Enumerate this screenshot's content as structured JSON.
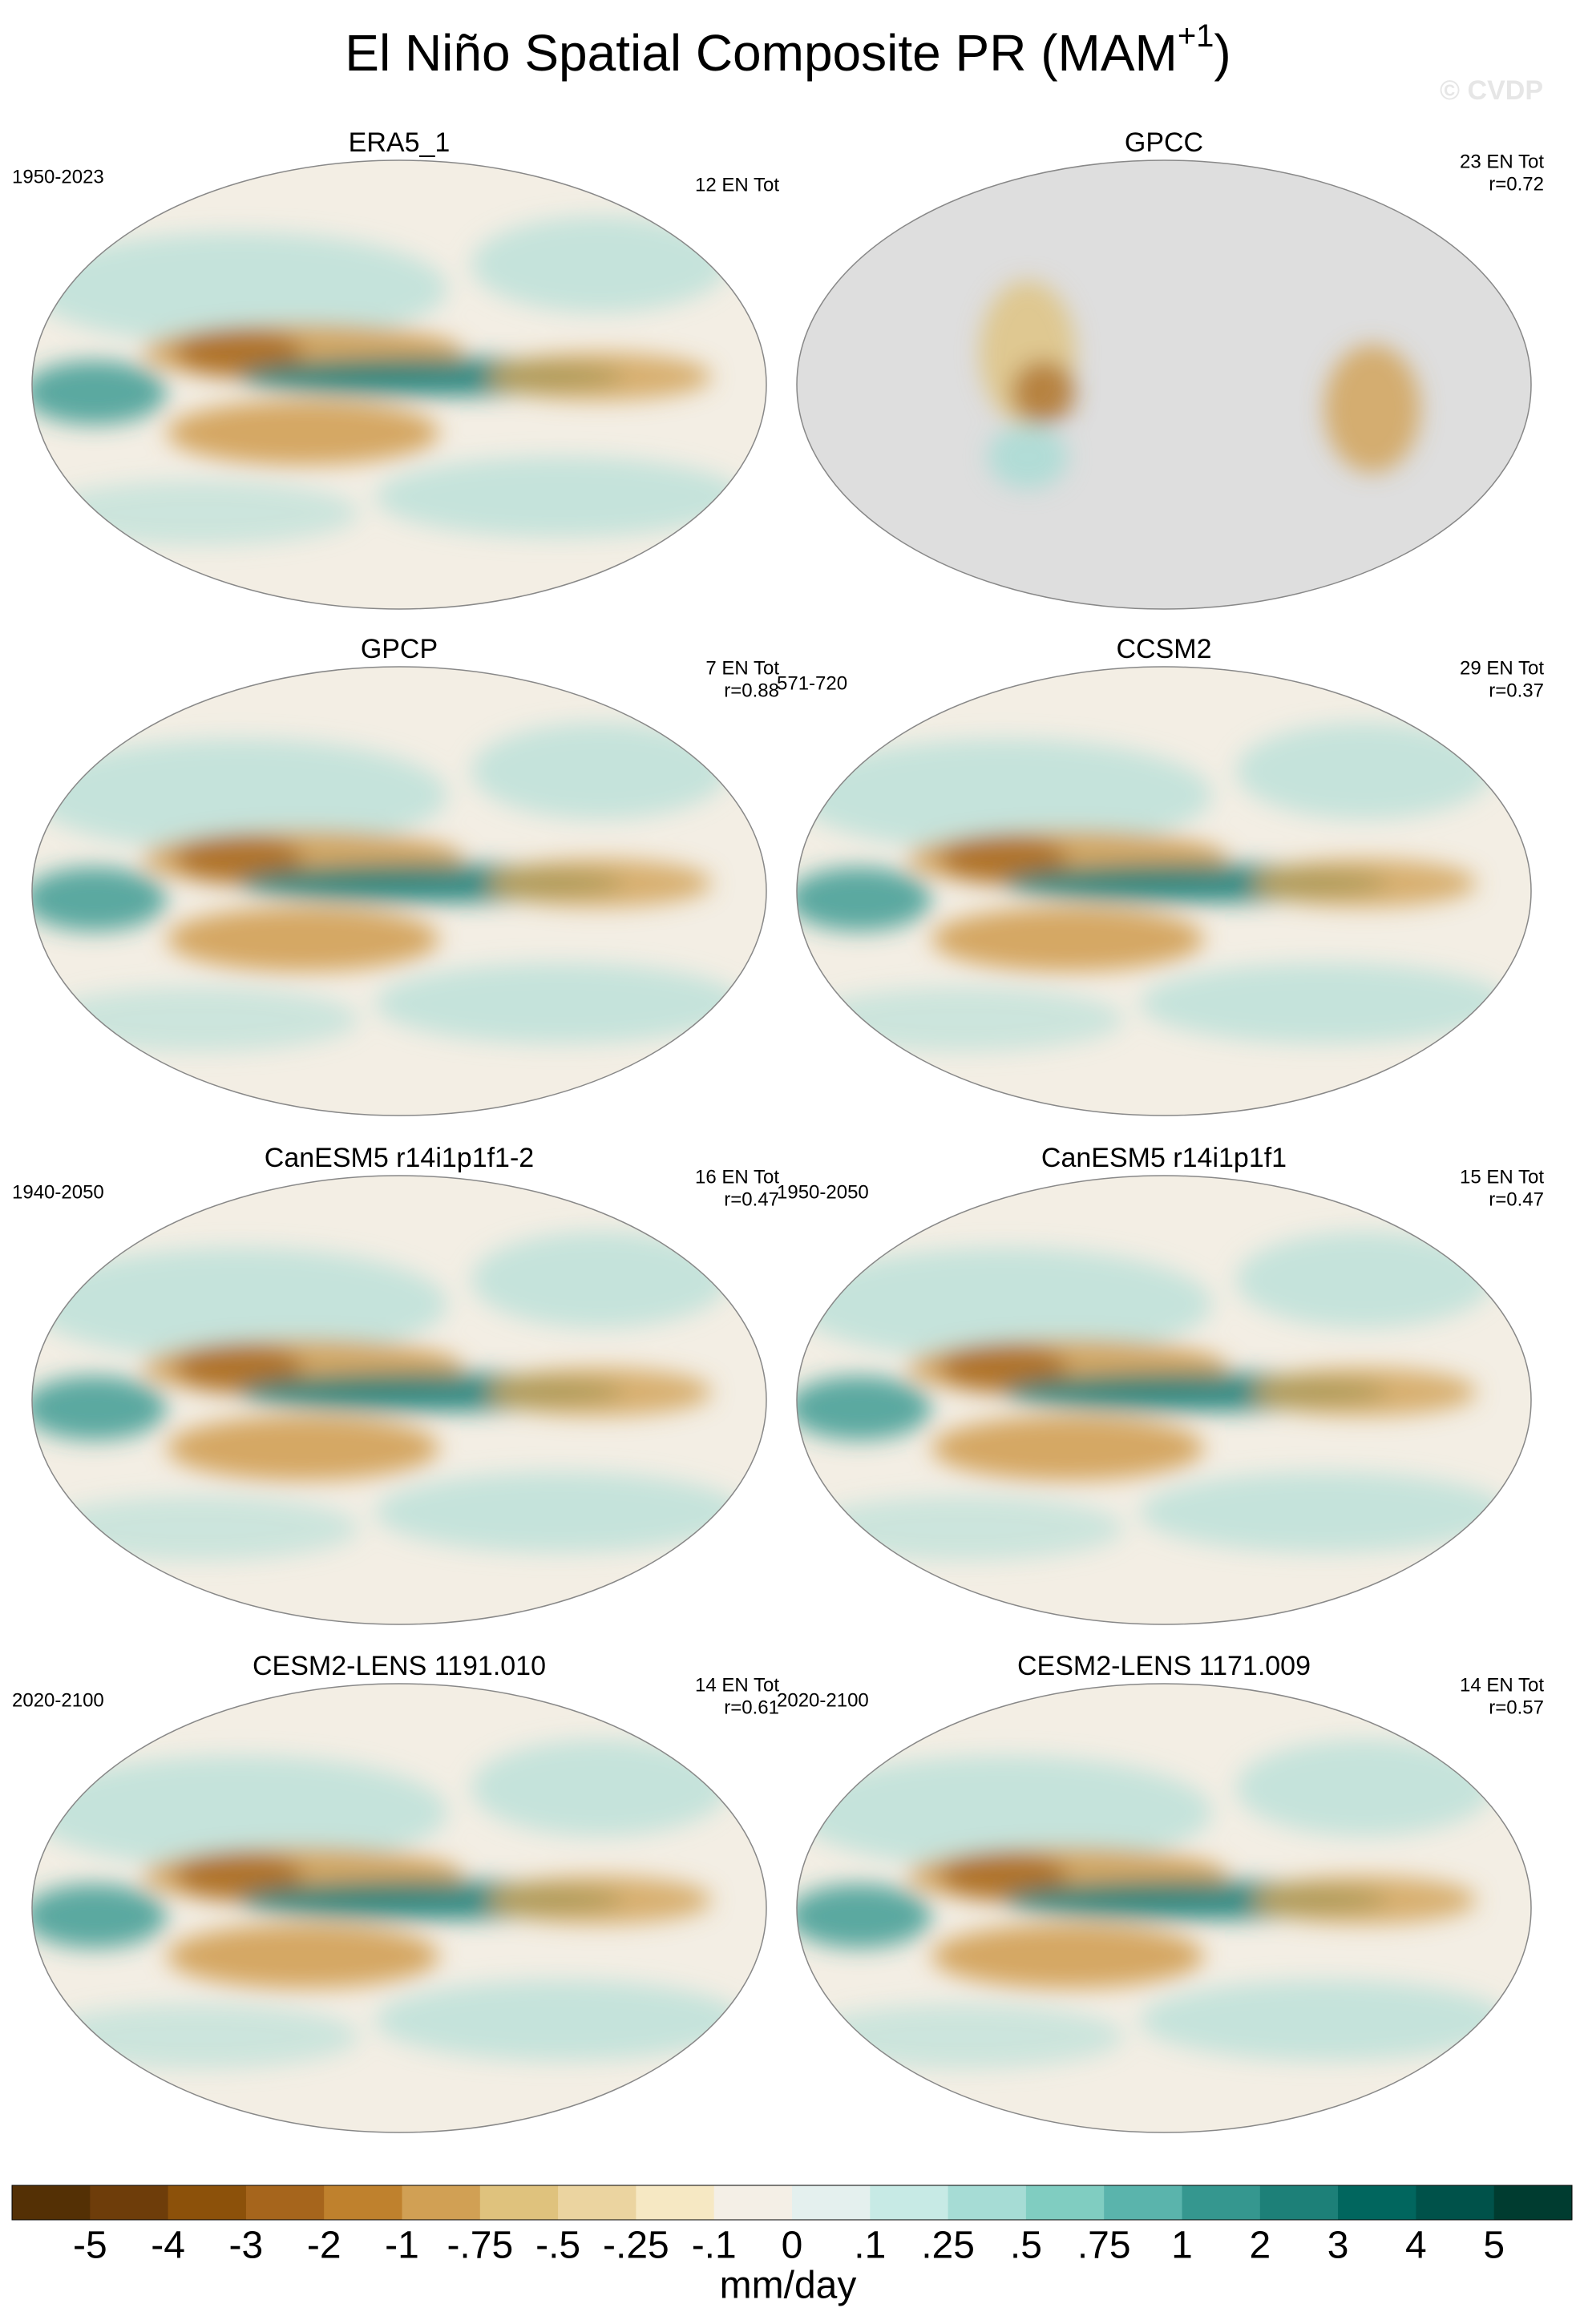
{
  "header": {
    "title": {
      "text": "El Niño Spatial Composite PR (MAM",
      "superscript": "+1",
      "suffix": ")"
    },
    "watermark": "© CVDP"
  },
  "panels": [
    {
      "title": "ERA5_1",
      "left": "1950-2023",
      "right": [
        "12 EN Tot"
      ]
    },
    {
      "title": "GPCC",
      "right": [
        "23 EN Tot",
        "r=0.72"
      ]
    },
    {
      "title": "GPCP",
      "right": [
        "7 EN Tot",
        "r=0.88"
      ]
    },
    {
      "title": "CCSM2",
      "left": "571-720",
      "right": [
        "29 EN Tot",
        "r=0.37"
      ]
    },
    {
      "title": "CanESM5 r14i1p1f1-2",
      "left": "1940-2050",
      "right": [
        "16 EN Tot",
        "r=0.47"
      ]
    },
    {
      "title": "CanESM5 r14i1p1f1",
      "left": "1950-2050",
      "right": [
        "15 EN Tot",
        "r=0.47"
      ]
    },
    {
      "title": "CESM2-LENS 1191.010",
      "left": "2020-2100",
      "right": [
        "14 EN Tot",
        "r=0.61"
      ]
    },
    {
      "title": "CESM2-LENS 1171.009",
      "left": "2020-2100",
      "right": [
        "14 EN Tot",
        "r=0.57"
      ]
    }
  ],
  "colorbar": {
    "colors": [
      "#543005",
      "#6e3d0a",
      "#8c510a",
      "#a6651c",
      "#bf812d",
      "#d1a054",
      "#dfc27d",
      "#ebd4a0",
      "#f6e8c3",
      "#f4efe6",
      "#e4f0ee",
      "#c7eae5",
      "#a6dcd5",
      "#80cdc1",
      "#5ab4ac",
      "#35978f",
      "#1d8078",
      "#01665e",
      "#00524a",
      "#003c30"
    ],
    "labels": [
      "-5",
      "-4",
      "-3",
      "-2",
      "-1",
      "-.75",
      "-.5",
      "-.25",
      "-.1",
      "0",
      ".1",
      ".25",
      ".5",
      ".75",
      "1",
      "2",
      "3",
      "4",
      "5"
    ],
    "unit": "mm/day"
  }
}
